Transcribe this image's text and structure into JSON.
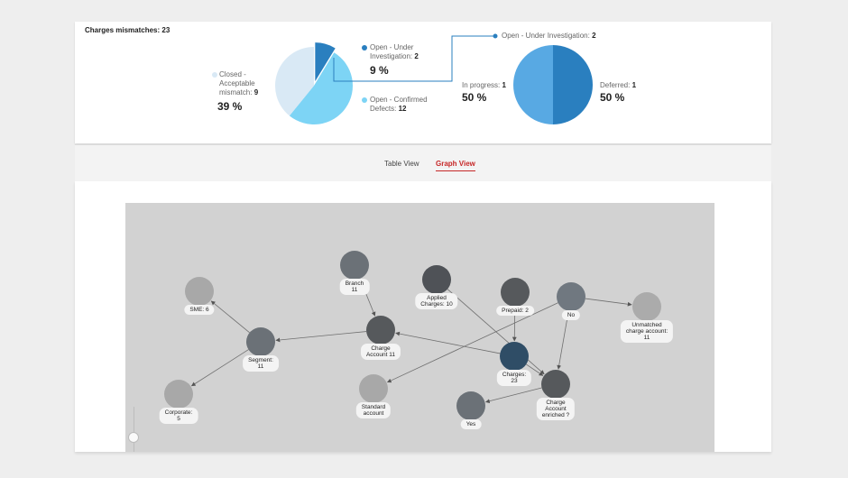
{
  "summary": {
    "title": "Charges mismatches: 23",
    "chart_data": [
      {
        "type": "pie",
        "slices": [
          {
            "name": "Open - Under Investigation",
            "value": 2,
            "percent_label": "9 %",
            "color": "#2a7fbf"
          },
          {
            "name": "Open - Confirmed Defects",
            "value": 12,
            "color": "#7dd4f5"
          },
          {
            "name": "Closed - Acceptable mismatch",
            "value": 9,
            "percent_label": "39 %",
            "color": "#d9e9f5"
          }
        ]
      },
      {
        "type": "pie",
        "title": "Open - Under Investigation: 2",
        "slices": [
          {
            "name": "In progress",
            "value": 1,
            "percent_label": "50 %",
            "color": "#58a9e3"
          },
          {
            "name": "Deferred",
            "value": 1,
            "percent_label": "50 %",
            "color": "#2a7fbf"
          }
        ]
      }
    ],
    "labels": {
      "open_ui_name": "Open - Under Investigation:",
      "open_ui_name_l1": "Open - Under",
      "open_ui_name_l2": "Investigation:",
      "open_ui_value": "2",
      "open_ui_pct": "9 %",
      "confirmed_l1": "Open - Confirmed",
      "confirmed_l2": "Defects:",
      "confirmed_value": "12",
      "closed_l1": "Closed -",
      "closed_l2": "Acceptable",
      "closed_l3": "mismatch:",
      "closed_value": "9",
      "closed_pct": "39 %",
      "sub_title_name": "Open - Under Investigation:",
      "sub_title_value": "2",
      "inprogress_name": "In progress:",
      "inprogress_value": "1",
      "inprogress_pct": "50 %",
      "deferred_name": "Deferred:",
      "deferred_value": "1",
      "deferred_pct": "50 %"
    }
  },
  "tabs": [
    {
      "label": "Table View",
      "active": false
    },
    {
      "label": "Graph View",
      "active": true
    }
  ],
  "graph": {
    "nodes": [
      {
        "id": "sme",
        "lines": [
          "SME: 6"
        ],
        "color": "#a8a8a8"
      },
      {
        "id": "branch",
        "lines": [
          "Branch",
          "11"
        ],
        "color": "#6b7177"
      },
      {
        "id": "applied",
        "lines": [
          "Applied",
          "Charges: 10"
        ],
        "color": "#4f5257"
      },
      {
        "id": "prepaid",
        "lines": [
          "Prepaid: 2"
        ],
        "color": "#56595c"
      },
      {
        "id": "no",
        "lines": [
          "No"
        ],
        "color": "#707880"
      },
      {
        "id": "unmatched",
        "lines": [
          "Unmatched",
          "charge account:",
          "11"
        ],
        "color": "#ababab"
      },
      {
        "id": "segment",
        "lines": [
          "Segment:",
          "11"
        ],
        "color": "#6b7177"
      },
      {
        "id": "chargeacct",
        "lines": [
          "Charge",
          "Account 11"
        ],
        "color": "#56595c"
      },
      {
        "id": "charges",
        "lines": [
          "Charges:",
          "23"
        ],
        "color": "#2f4d66"
      },
      {
        "id": "standard",
        "lines": [
          "Standard",
          "account"
        ],
        "color": "#a8a8a8"
      },
      {
        "id": "enriched",
        "lines": [
          "Charge",
          "Account",
          "enriched ?"
        ],
        "color": "#56595c"
      },
      {
        "id": "corporate",
        "lines": [
          "Corporate:",
          "5"
        ],
        "color": "#a8a8a8"
      },
      {
        "id": "yes",
        "lines": [
          "Yes"
        ],
        "color": "#6b7177"
      }
    ],
    "edges": [
      [
        "segment",
        "sme"
      ],
      [
        "segment",
        "corporate"
      ],
      [
        "chargeacct",
        "segment"
      ],
      [
        "branch",
        "chargeacct"
      ],
      [
        "charges",
        "chargeacct"
      ],
      [
        "applied",
        "enriched"
      ],
      [
        "prepaid",
        "charges"
      ],
      [
        "no",
        "standard"
      ],
      [
        "no",
        "unmatched"
      ],
      [
        "no",
        "enriched"
      ],
      [
        "charges",
        "enriched"
      ],
      [
        "enriched",
        "yes"
      ]
    ]
  }
}
